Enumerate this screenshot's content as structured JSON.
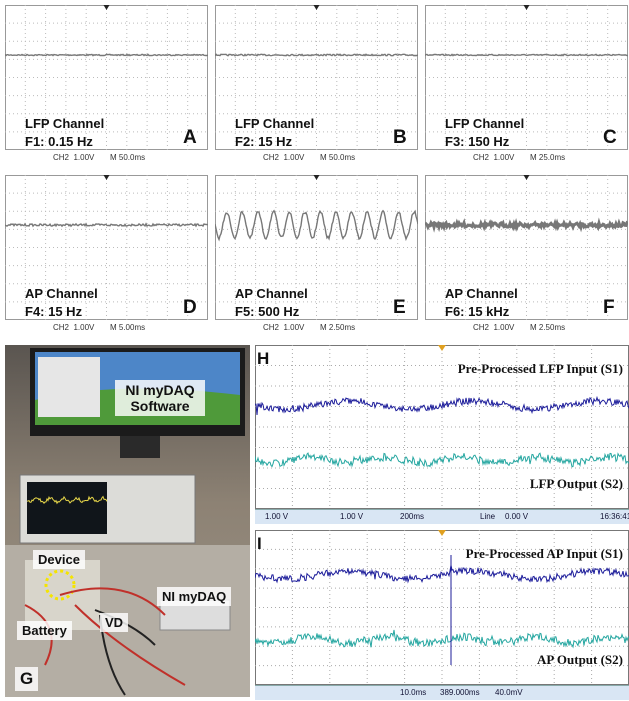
{
  "panels": [
    {
      "channel": "LFP Channel",
      "frequency": "F1: 0.15 Hz",
      "letter": "A",
      "channel_scale": "CH2  1.00V",
      "time_scale": "M 50.0ms"
    },
    {
      "channel": "LFP Channel",
      "frequency": "F2: 15 Hz",
      "letter": "B",
      "channel_scale": "CH2  1.00V",
      "time_scale": "M 50.0ms"
    },
    {
      "channel": "LFP Channel",
      "frequency": "F3: 150 Hz",
      "letter": "C",
      "channel_scale": "CH2  1.00V",
      "time_scale": "M 25.0ms"
    },
    {
      "channel": "AP Channel",
      "frequency": "F4: 15 Hz",
      "letter": "D",
      "channel_scale": "CH2  1.00V",
      "time_scale": "M 5.00ms"
    },
    {
      "channel": "AP Channel",
      "frequency": "F5: 500 Hz",
      "letter": "E",
      "channel_scale": "CH2  1.00V",
      "time_scale": "M 2.50ms"
    },
    {
      "channel": "AP Channel",
      "frequency": "F6: 15 kHz",
      "letter": "F",
      "channel_scale": "CH2  1.00V",
      "time_scale": "M 2.50ms"
    }
  ],
  "photo": {
    "letter": "G",
    "software": "NI myDAQ Software",
    "device": "Device",
    "battery": "Battery",
    "vd": "VD",
    "daq": "NI myDAQ"
  },
  "recordings": [
    {
      "letter": "H",
      "input": "Pre-Processed LFP Input (S1)",
      "output": "LFP Output (S2)",
      "status": [
        "1.00 V",
        "1.00 V",
        "200ms",
        "Line",
        "0.00 V",
        "16:36:41"
      ]
    },
    {
      "letter": "I",
      "input": "Pre-Processed AP Input (S1)",
      "output": "AP Output (S2)",
      "status": [
        "10.0ms",
        "389.000ms",
        "40.0mV"
      ]
    }
  ]
}
